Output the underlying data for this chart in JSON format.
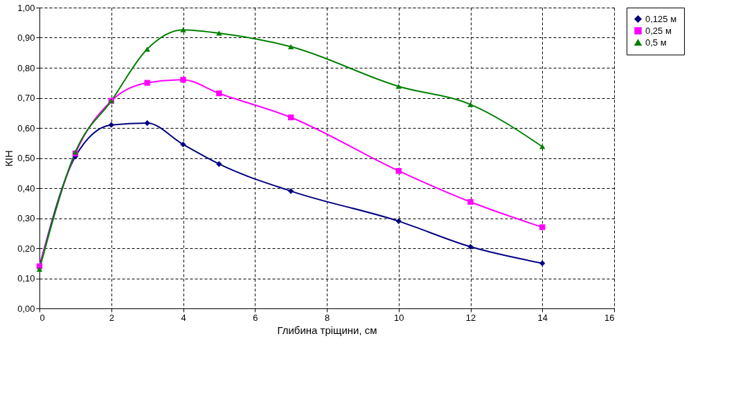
{
  "chart_data": {
    "type": "line",
    "xlabel": "Глибина тріщини, см",
    "ylabel": "КІН",
    "x": [
      0,
      1,
      2,
      3,
      4,
      5,
      7,
      10,
      12,
      14
    ],
    "series": [
      {
        "name": "0,125 м",
        "color": "#000080",
        "marker": "diamond",
        "values": [
          0.14,
          0.505,
          0.61,
          0.616,
          0.545,
          0.48,
          0.39,
          0.29,
          0.205,
          0.15
        ]
      },
      {
        "name": "0,25 м",
        "color": "#ff00ff",
        "marker": "square",
        "values": [
          0.14,
          0.515,
          0.69,
          0.75,
          0.76,
          0.715,
          0.635,
          0.457,
          0.354,
          0.27
        ]
      },
      {
        "name": "0,5 м",
        "color": "#008000",
        "marker": "triangle",
        "values": [
          0.13,
          0.52,
          0.69,
          0.862,
          0.926,
          0.915,
          0.87,
          0.738,
          0.678,
          0.538
        ]
      }
    ],
    "xlim": [
      0,
      16
    ],
    "xticks": [
      0,
      2,
      4,
      6,
      8,
      10,
      12,
      14,
      16
    ],
    "ylim": [
      0,
      1
    ],
    "yticks": [
      {
        "value": 0,
        "label": "0,00"
      },
      {
        "value": 0.1,
        "label": "0,10"
      },
      {
        "value": 0.2,
        "label": "0,20"
      },
      {
        "value": 0.3,
        "label": "0,30"
      },
      {
        "value": 0.4,
        "label": "0,40"
      },
      {
        "value": 0.5,
        "label": "0,50"
      },
      {
        "value": 0.6,
        "label": "0,60"
      },
      {
        "value": 0.7,
        "label": "0,70"
      },
      {
        "value": 0.8,
        "label": "0,80"
      },
      {
        "value": 0.9,
        "label": "0,90"
      },
      {
        "value": 1.0,
        "label": "1,00"
      }
    ],
    "grid": true,
    "legend": "right",
    "line_style": "solid"
  }
}
